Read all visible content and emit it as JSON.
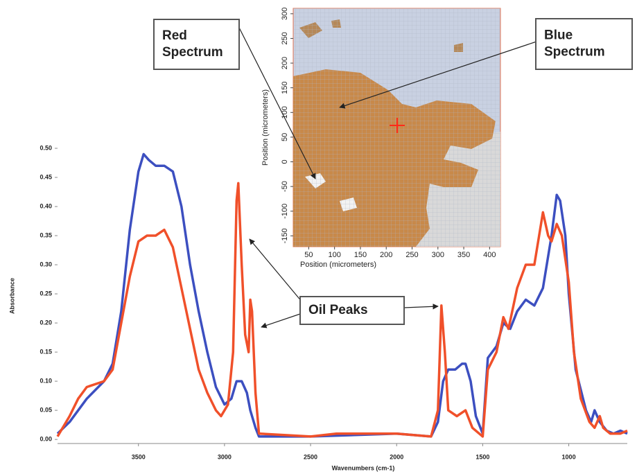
{
  "chart_data": [
    {
      "type": "line",
      "x_label": "Wavenumbers (cm-1)",
      "y_label": "Absorbance",
      "xlim": [
        3970,
        660
      ],
      "ylim": [
        -0.007,
        0.5
      ],
      "xticks": [
        3500,
        3000,
        2500,
        2000,
        1500,
        1000
      ],
      "yticks": [
        {
          "value": 0,
          "label": "0.00"
        },
        {
          "value": 0.05,
          "label": "0.05"
        },
        {
          "value": 0.1,
          "label": "0.10"
        },
        {
          "value": 0.15,
          "label": "0.15"
        },
        {
          "value": 0.2,
          "label": "0.20"
        },
        {
          "value": 0.25,
          "label": "0.25"
        },
        {
          "value": 0.3,
          "label": "0.30"
        },
        {
          "value": 0.35,
          "label": "0.35"
        },
        {
          "value": 0.4,
          "label": "0.40"
        },
        {
          "value": 0.45,
          "label": "0.45"
        },
        {
          "value": 0.5,
          "label": "0.50"
        }
      ],
      "series": [
        {
          "color": "#3c4fc0",
          "x": [
            3970,
            3900,
            3800,
            3700,
            3650,
            3600,
            3550,
            3500,
            3470,
            3440,
            3400,
            3350,
            3300,
            3250,
            3200,
            3150,
            3100,
            3050,
            3000,
            2960,
            2930,
            2900,
            2870,
            2850,
            2820,
            2800,
            2500,
            2000,
            1800,
            1760,
            1730,
            1700,
            1660,
            1620,
            1600,
            1570,
            1540,
            1500,
            1470,
            1420,
            1380,
            1340,
            1300,
            1250,
            1200,
            1150,
            1100,
            1070,
            1050,
            1020,
            1000,
            960,
            900,
            870,
            850,
            820,
            780,
            740,
            700,
            660
          ],
          "values": [
            0.01,
            0.03,
            0.07,
            0.1,
            0.13,
            0.22,
            0.36,
            0.46,
            0.49,
            0.48,
            0.47,
            0.47,
            0.46,
            0.4,
            0.3,
            0.22,
            0.15,
            0.09,
            0.06,
            0.07,
            0.1,
            0.1,
            0.08,
            0.05,
            0.02,
            0.005,
            0.005,
            0.01,
            0.005,
            0.03,
            0.1,
            0.12,
            0.12,
            0.13,
            0.13,
            0.1,
            0.04,
            0.01,
            0.14,
            0.16,
            0.2,
            0.19,
            0.22,
            0.24,
            0.23,
            0.26,
            0.35,
            0.42,
            0.41,
            0.35,
            0.25,
            0.12,
            0.05,
            0.03,
            0.05,
            0.03,
            0.015,
            0.01,
            0.015,
            0.01
          ]
        },
        {
          "color": "#f0502a",
          "x": [
            3970,
            3900,
            3850,
            3800,
            3700,
            3650,
            3600,
            3550,
            3500,
            3450,
            3400,
            3350,
            3300,
            3250,
            3200,
            3150,
            3100,
            3050,
            3020,
            2980,
            2950,
            2930,
            2920,
            2900,
            2880,
            2860,
            2850,
            2840,
            2820,
            2800,
            2500,
            2350,
            2000,
            1800,
            1760,
            1740,
            1720,
            1700,
            1650,
            1600,
            1560,
            1500,
            1470,
            1420,
            1380,
            1350,
            1300,
            1250,
            1200,
            1150,
            1120,
            1100,
            1070,
            1040,
            1000,
            970,
            930,
            880,
            850,
            820,
            800,
            760,
            700,
            660
          ],
          "values": [
            0.005,
            0.04,
            0.07,
            0.09,
            0.1,
            0.12,
            0.2,
            0.28,
            0.34,
            0.35,
            0.35,
            0.36,
            0.33,
            0.26,
            0.19,
            0.12,
            0.08,
            0.05,
            0.04,
            0.06,
            0.15,
            0.41,
            0.44,
            0.3,
            0.18,
            0.15,
            0.24,
            0.22,
            0.08,
            0.01,
            0.005,
            0.01,
            0.01,
            0.005,
            0.05,
            0.23,
            0.15,
            0.05,
            0.04,
            0.05,
            0.02,
            0.005,
            0.12,
            0.15,
            0.21,
            0.19,
            0.26,
            0.3,
            0.3,
            0.39,
            0.35,
            0.34,
            0.37,
            0.35,
            0.27,
            0.15,
            0.07,
            0.03,
            0.02,
            0.04,
            0.02,
            0.01,
            0.01,
            0.015
          ]
        }
      ],
      "annotations": [
        [
          "Red",
          "Spectrum"
        ],
        [
          "Blue",
          "Spectrum"
        ],
        [
          "Oil Peaks"
        ]
      ]
    },
    {
      "type": "image",
      "x_label": "Position (micrometers)",
      "y_label": "Position (micrometers)",
      "xlim": [
        20,
        421
      ],
      "ylim": [
        -172,
        311
      ],
      "xticks": [
        50,
        100,
        150,
        200,
        250,
        300,
        350,
        400
      ],
      "yticks": [
        -150,
        -100,
        -50,
        0,
        50,
        100,
        150,
        200,
        250,
        300
      ]
    }
  ]
}
